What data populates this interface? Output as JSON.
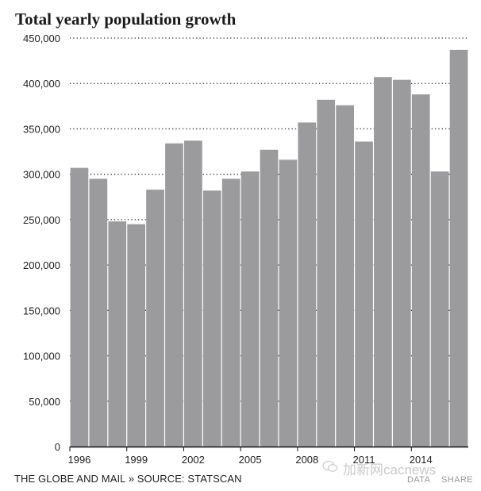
{
  "chart_data": {
    "type": "bar",
    "title": "Total yearly population growth",
    "categories": [
      "1996",
      "1997",
      "1998",
      "1999",
      "2000",
      "2001",
      "2002",
      "2003",
      "2004",
      "2005",
      "2006",
      "2007",
      "2008",
      "2009",
      "2010",
      "2011",
      "2012",
      "2013",
      "2014",
      "2015",
      "2016"
    ],
    "values": [
      307000,
      295000,
      248000,
      245000,
      283000,
      334000,
      337000,
      282000,
      295000,
      303000,
      327000,
      316000,
      357000,
      382000,
      376000,
      336000,
      407000,
      404000,
      388000,
      303000,
      437000
    ],
    "x_tick_labels": [
      "1996",
      "1999",
      "2002",
      "2005",
      "2008",
      "2011",
      "2014"
    ],
    "y_tick_labels": [
      "0",
      "50,000",
      "100,000",
      "150,000",
      "200,000",
      "250,000",
      "300,000",
      "350,000",
      "400,000",
      "450,000"
    ],
    "ylim": [
      0,
      450000
    ],
    "xlabel": "",
    "ylabel": "",
    "grid": "dotted horizontal",
    "bar_color": "#9b9a9c"
  },
  "footer": {
    "source": "THE GLOBE AND MAIL » SOURCE: STATSCAN",
    "watermark": "加新网cacnews",
    "data_link": "DATA",
    "share_link": "SHARE"
  }
}
